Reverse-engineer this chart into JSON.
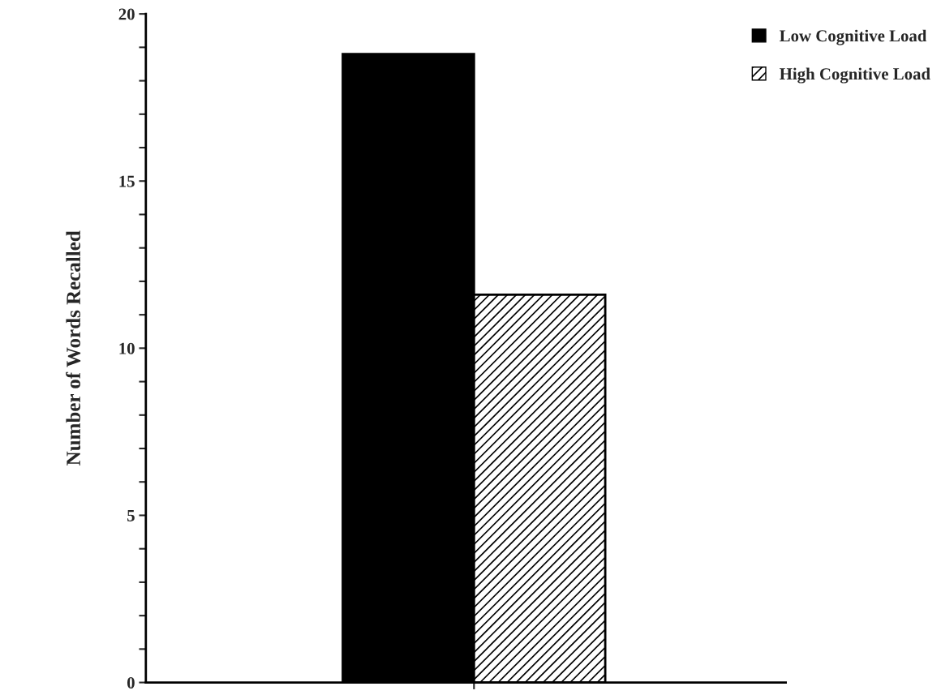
{
  "chart_data": {
    "type": "bar",
    "ylabel": "Number of Words Recalled",
    "categories": [
      null
    ],
    "series": [
      {
        "name": "Low Cognitive Load",
        "color": "#000000",
        "values": [
          18.8
        ]
      },
      {
        "name": "High Cognitive Load",
        "color": "#000000",
        "values": [
          11.6
        ]
      }
    ],
    "ylim": [
      0,
      20
    ],
    "yticks": [
      0,
      {
        "value": 1,
        "label": null
      },
      {
        "value": 2,
        "label": null
      },
      {
        "value": 3,
        "label": null
      },
      {
        "value": 4,
        "label": null
      },
      5,
      {
        "value": 6,
        "label": null
      },
      {
        "value": 7,
        "label": null
      },
      {
        "value": 8,
        "label": null
      },
      {
        "value": 9,
        "label": null
      },
      10,
      {
        "value": 11,
        "label": null
      },
      {
        "value": 12,
        "label": null
      },
      {
        "value": 13,
        "label": null
      },
      {
        "value": 14,
        "label": null
      },
      15,
      {
        "value": 16,
        "label": null
      },
      {
        "value": 17,
        "label": null
      },
      {
        "value": 18,
        "label": null
      },
      {
        "value": 19,
        "label": null
      },
      20
    ],
    "grid": false,
    "legend": "top right"
  }
}
